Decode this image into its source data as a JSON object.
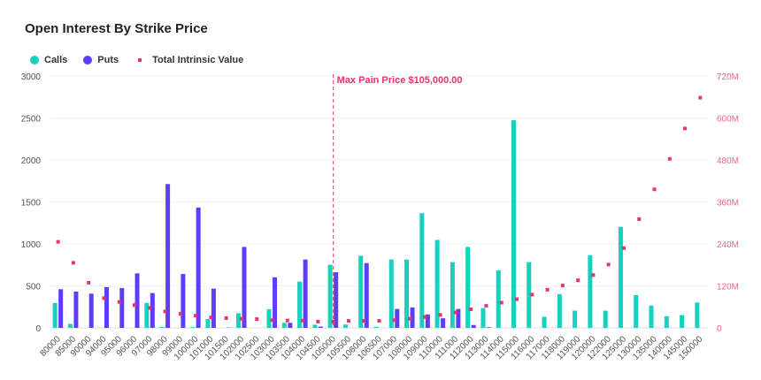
{
  "chart_data": {
    "type": "bar",
    "title": "Open Interest By Strike Price",
    "legend_position": "top-left",
    "grid": true,
    "categories": [
      "80000",
      "85000",
      "90000",
      "94000",
      "95000",
      "96000",
      "97000",
      "98000",
      "99000",
      "100000",
      "101000",
      "101500",
      "102000",
      "102500",
      "103000",
      "103500",
      "104000",
      "104500",
      "105000",
      "105500",
      "106000",
      "106500",
      "107000",
      "108000",
      "109000",
      "110000",
      "111000",
      "112000",
      "113000",
      "114000",
      "115000",
      "116000",
      "117000",
      "118000",
      "119000",
      "120000",
      "122000",
      "125000",
      "130000",
      "135000",
      "140000",
      "145000",
      "150000"
    ],
    "series": [
      {
        "name": "Calls",
        "type": "bar",
        "axis": "left",
        "color": "#14d2bd",
        "values": [
          296,
          47,
          0,
          0,
          0,
          0,
          296,
          10,
          0,
          10,
          107,
          0,
          173,
          0,
          222,
          60,
          551,
          37,
          751,
          40,
          859,
          13,
          814,
          814,
          1366,
          1048,
          783,
          964,
          236,
          684,
          2473,
          783,
          131,
          401,
          205,
          866,
          205,
          1203,
          391,
          265,
          139,
          152,
          302
        ]
      },
      {
        "name": "Puts",
        "type": "bar",
        "axis": "left",
        "color": "#5f3cfa",
        "values": [
          460,
          432,
          408,
          485,
          474,
          649,
          415,
          1713,
          642,
          1433,
          467,
          4,
          964,
          0,
          602,
          60,
          814,
          15,
          663,
          0,
          772,
          0,
          225,
          243,
          160,
          114,
          225,
          34,
          7,
          0,
          0,
          0,
          0,
          0,
          0,
          0,
          0,
          0,
          0,
          0,
          0,
          0,
          0
        ]
      },
      {
        "name": "Total Intrinsic Value",
        "type": "scatter",
        "axis": "right",
        "color": "#e8336b",
        "values": [
          246000000,
          186000000,
          129000000,
          85000000,
          74000000,
          65000000,
          57000000,
          47000000,
          40000000,
          35000000,
          30000000,
          28000000,
          26000000,
          25000000,
          22000000,
          21000000,
          21000000,
          18000000,
          18000000,
          20000000,
          20000000,
          20000000,
          22000000,
          26000000,
          31000000,
          37000000,
          44000000,
          53000000,
          63000000,
          72000000,
          82000000,
          95000000,
          109000000,
          121000000,
          136000000,
          151000000,
          181000000,
          228000000,
          311000000,
          396000000,
          483000000,
          570000000,
          658000000
        ]
      }
    ],
    "ylim": [
      0,
      3000
    ],
    "y_ticks": [
      "0",
      "500",
      "1000",
      "1500",
      "2000",
      "2500",
      "3000"
    ],
    "y2lim": [
      0,
      720000000
    ],
    "y2_ticks": [
      "0",
      "120M",
      "240M",
      "360M",
      "480M",
      "600M",
      "720M"
    ],
    "annotation": {
      "label": "Max Pain Price $105,000.00",
      "category": "105000",
      "color": "#e8336b"
    }
  }
}
